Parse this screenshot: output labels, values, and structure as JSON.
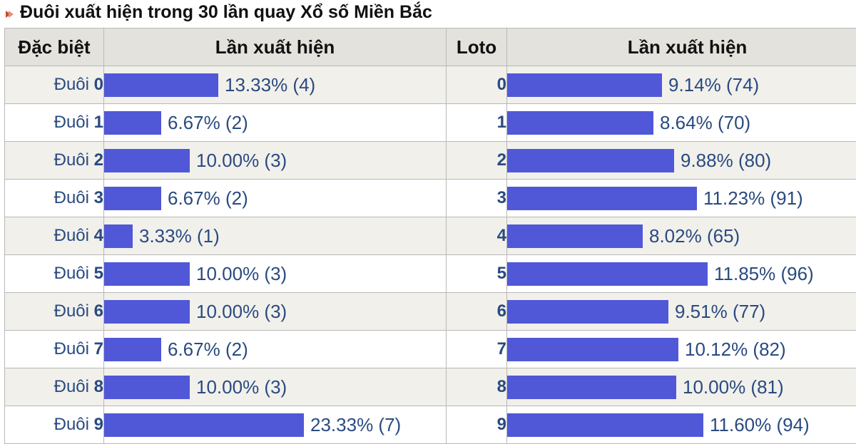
{
  "title": "Đuôi xuất hiện trong 30 lần quay Xổ số Miền Bắc",
  "colors": {
    "bar": "#5058d8",
    "header_bg": "#e4e2dc",
    "row_alt_bg": "#f1f0eb",
    "text_blue": "#2a4a80"
  },
  "table": {
    "headers": [
      "Đặc biệt",
      "Lần xuất hiện",
      "Loto",
      "Lần xuất hiện"
    ],
    "rows": [
      {
        "db_prefix": "Đuôi",
        "db_digit": "0",
        "db_percent": 13.33,
        "db_text": "13.33% (4)",
        "loto": "0",
        "loto_percent": 9.14,
        "loto_text": "9.14% (74)"
      },
      {
        "db_prefix": "Đuôi",
        "db_digit": "1",
        "db_percent": 6.67,
        "db_text": "6.67% (2)",
        "loto": "1",
        "loto_percent": 8.64,
        "loto_text": "8.64% (70)"
      },
      {
        "db_prefix": "Đuôi",
        "db_digit": "2",
        "db_percent": 10.0,
        "db_text": "10.00% (3)",
        "loto": "2",
        "loto_percent": 9.88,
        "loto_text": "9.88% (80)"
      },
      {
        "db_prefix": "Đuôi",
        "db_digit": "3",
        "db_percent": 6.67,
        "db_text": "6.67% (2)",
        "loto": "3",
        "loto_percent": 11.23,
        "loto_text": "11.23% (91)"
      },
      {
        "db_prefix": "Đuôi",
        "db_digit": "4",
        "db_percent": 3.33,
        "db_text": "3.33% (1)",
        "loto": "4",
        "loto_percent": 8.02,
        "loto_text": "8.02% (65)"
      },
      {
        "db_prefix": "Đuôi",
        "db_digit": "5",
        "db_percent": 10.0,
        "db_text": "10.00% (3)",
        "loto": "5",
        "loto_percent": 11.85,
        "loto_text": "11.85% (96)"
      },
      {
        "db_prefix": "Đuôi",
        "db_digit": "6",
        "db_percent": 10.0,
        "db_text": "10.00% (3)",
        "loto": "6",
        "loto_percent": 9.51,
        "loto_text": "9.51% (77)"
      },
      {
        "db_prefix": "Đuôi",
        "db_digit": "7",
        "db_percent": 6.67,
        "db_text": "6.67% (2)",
        "loto": "7",
        "loto_percent": 10.12,
        "loto_text": "10.12% (82)"
      },
      {
        "db_prefix": "Đuôi",
        "db_digit": "8",
        "db_percent": 10.0,
        "db_text": "10.00% (3)",
        "loto": "8",
        "loto_percent": 10.0,
        "loto_text": "10.00% (81)"
      },
      {
        "db_prefix": "Đuôi",
        "db_digit": "9",
        "db_percent": 23.33,
        "db_text": "23.33% (7)",
        "loto": "9",
        "loto_percent": 11.6,
        "loto_text": "11.60% (94)"
      }
    ]
  }
}
